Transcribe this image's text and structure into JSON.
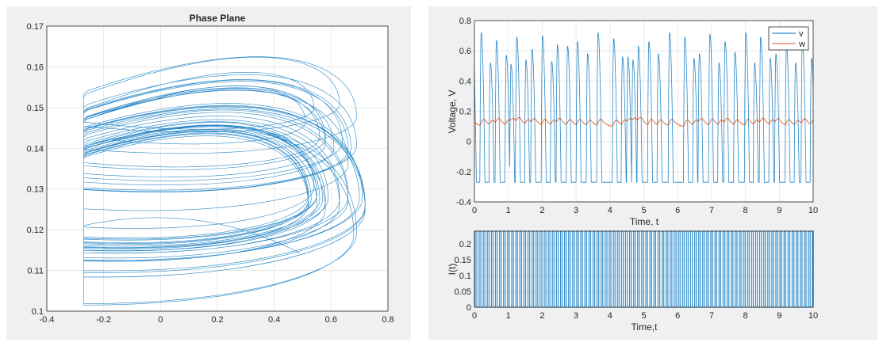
{
  "chart_data": [
    {
      "type": "line",
      "title": "Phase Plane",
      "xlabel": "",
      "ylabel": "",
      "xlim": [
        -0.4,
        0.8
      ],
      "ylim": [
        0.1,
        0.17
      ],
      "xticks": [
        "-0.4",
        "-0.2",
        "0",
        "0.2",
        "0.4",
        "0.6",
        "0.8"
      ],
      "yticks": [
        "0.1",
        "0.11",
        "0.12",
        "0.13",
        "0.14",
        "0.15",
        "0.16",
        "0.17"
      ],
      "grid": true,
      "series": [
        {
          "x_variable": "v",
          "y_variable": "w",
          "color": "#0072BD"
        }
      ]
    },
    {
      "type": "line",
      "title": "",
      "xlabel": "Time, t",
      "ylabel": "Voltage, V",
      "xlim": [
        0,
        10
      ],
      "ylim": [
        -0.4,
        0.8
      ],
      "xticks": [
        "0",
        "1",
        "2",
        "3",
        "4",
        "5",
        "6",
        "7",
        "8",
        "9",
        "10"
      ],
      "yticks": [
        "-0.4",
        "-0.2",
        "0",
        "0.2",
        "0.4",
        "0.6",
        "0.8"
      ],
      "grid": true,
      "legend": {
        "position": "top-right",
        "entries": [
          "v",
          "w"
        ]
      },
      "series": [
        {
          "name": "v",
          "color": "#0072BD",
          "initial_value": 0.49,
          "rest_value": -0.27,
          "spike_times": [
            0.2,
            0.47,
            0.65,
            0.94,
            1.08,
            1.25,
            1.52,
            1.7,
            2.01,
            2.28,
            2.45,
            2.75,
            3.04,
            3.34,
            3.65,
            4.11,
            4.37,
            4.53,
            4.68,
            4.84,
            5.15,
            5.43,
            5.76,
            6.21,
            6.48,
            6.64,
            6.95,
            7.22,
            7.4,
            7.69,
            8.01,
            8.27,
            8.45,
            8.73,
            8.9,
            9.21,
            9.48,
            9.68,
            9.95
          ],
          "spike_peaks": [
            0.72,
            0.52,
            0.67,
            0.57,
            0.51,
            0.69,
            0.54,
            0.61,
            0.7,
            0.53,
            0.64,
            0.63,
            0.66,
            0.58,
            0.72,
            0.68,
            0.56,
            0.56,
            0.54,
            0.63,
            0.66,
            0.58,
            0.72,
            0.69,
            0.55,
            0.58,
            0.71,
            0.52,
            0.66,
            0.59,
            0.72,
            0.52,
            0.69,
            0.55,
            0.58,
            0.63,
            0.52,
            0.66,
            0.55
          ]
        },
        {
          "name": "w",
          "color": "#D95319",
          "range": [
            0.1,
            0.16
          ]
        }
      ]
    },
    {
      "type": "line",
      "title": "",
      "xlabel": "Time,t",
      "ylabel": "I(t)",
      "xlim": [
        0,
        10
      ],
      "ylim": [
        0,
        0.24
      ],
      "xticks": [
        "0",
        "1",
        "2",
        "3",
        "4",
        "5",
        "6",
        "7",
        "8",
        "9",
        "10"
      ],
      "yticks": [
        "0",
        "0.05",
        "0.1",
        "0.15",
        "0.2"
      ],
      "grid": true,
      "series": [
        {
          "name": "I",
          "color": "#0072BD",
          "pulse_amplitude": 0.24,
          "pulse_period": 0.12,
          "pulse_width": 0.05
        }
      ]
    }
  ]
}
